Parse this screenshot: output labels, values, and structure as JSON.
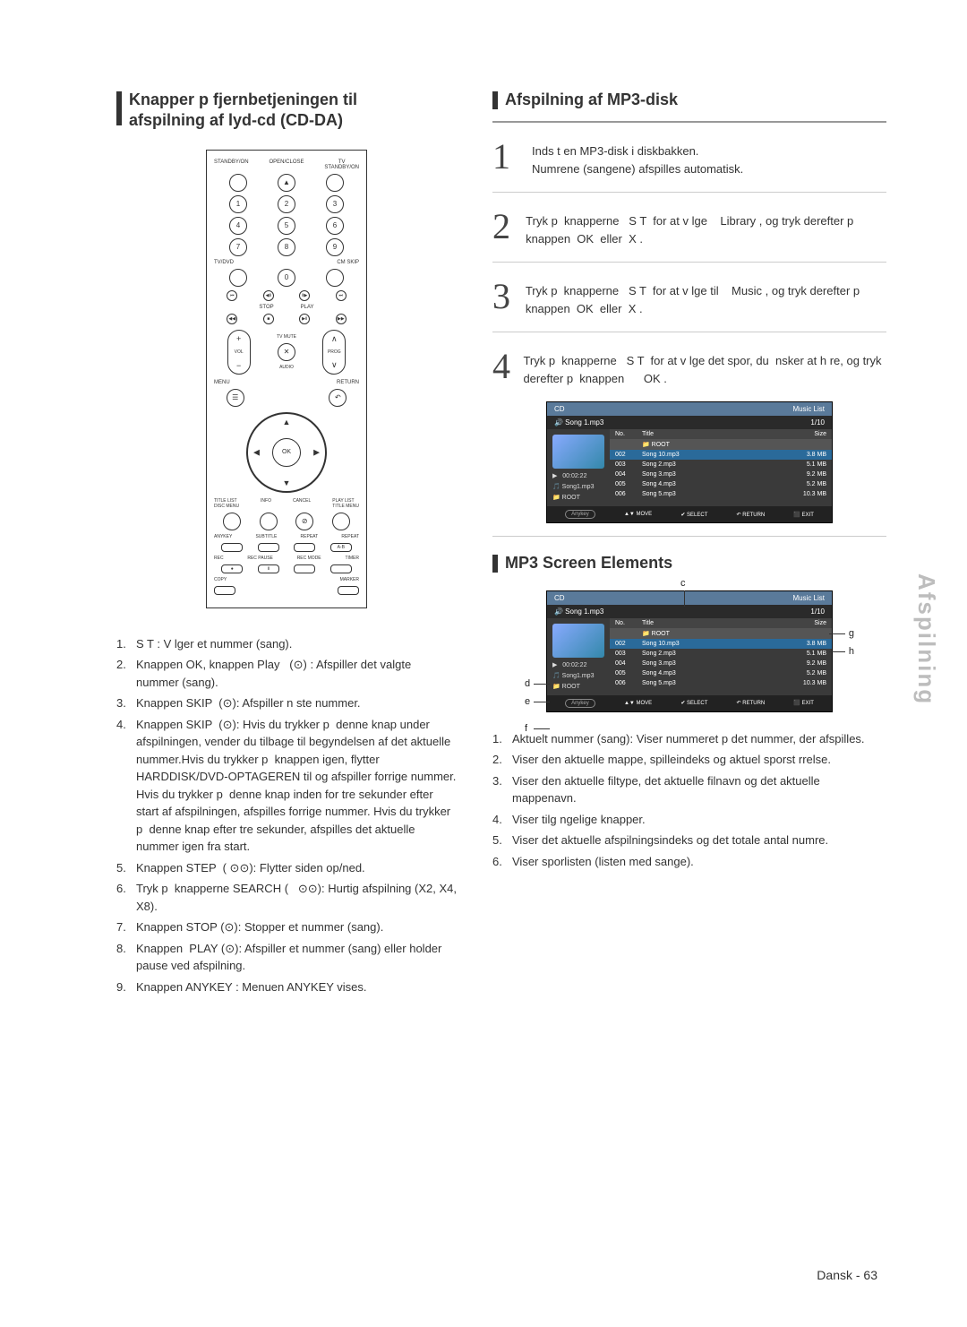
{
  "left": {
    "title_line1": "Knapper p  fjernbetjeningen til",
    "title_line2": "afspilning af lyd-cd (CD-DA)",
    "remote": {
      "labels": {
        "standby": "STANDBY/ON",
        "openclose": "OPEN/CLOSE",
        "tvstandby": "TV\nSTANDBY/ON",
        "tvdvd": "TV/DVD",
        "cmskip": "CM SKIP",
        "stop": "STOP",
        "play": "PLAY",
        "tvmute": "TV MUTE",
        "vol": "VOL",
        "prog": "PROG",
        "audio": "AUDIO",
        "menu": "MENU",
        "return": "RETURN",
        "ok": "OK",
        "titlelist": "TITLE LIST\nDISC MENU",
        "info": "INFO",
        "cancel": "CANCEL",
        "playlist": "PLAY LIST\nTITLE MENU",
        "anykey": "ANYKEY",
        "subtitle": "SUBTITLE",
        "repeat": "REPEAT",
        "repeat2": "REPEAT",
        "ab": "A-B",
        "rec": "REC",
        "recpause": "REC PAUSE",
        "recmode": "REC MODE",
        "timer": "TIMER",
        "copy": "COPY",
        "marker": "MARKER"
      }
    },
    "list": [
      {
        "n": "1.",
        "text": "S T : V lger et nummer (sang)."
      },
      {
        "n": "2.",
        "text": "Knappen OK, knappen Play   (⊙) : Afspiller det valgte nummer (sang)."
      },
      {
        "n": "3.",
        "text": "Knappen SKIP  (⊙): Afspiller n ste nummer."
      },
      {
        "n": "4.",
        "text": "Knappen SKIP  (⊙): Hvis du trykker p  denne knap under afspilningen, vender du tilbage til begyndelsen af det aktuelle nummer.Hvis du trykker p  knappen igen, flytter HARDDISK/DVD-OPTAGEREN til og afspiller forrige nummer.\nHvis du trykker p  denne knap inden for tre sekunder efter start af afspilningen, afspilles forrige nummer. Hvis du trykker p  denne knap efter tre sekunder, afspilles det aktuelle nummer igen fra start."
      },
      {
        "n": "5.",
        "text": "Knappen STEP  ( ⊙⊙): Flytter siden op/ned."
      },
      {
        "n": "6.",
        "text": "Tryk p  knapperne SEARCH (   ⊙⊙): Hurtig afspilning (X2, X4, X8)."
      },
      {
        "n": "7.",
        "text": "Knappen STOP (⊙): Stopper et nummer (sang)."
      },
      {
        "n": "8.",
        "text": "Knappen  PLAY (⊙): Afspiller et nummer (sang) eller holder pause ved afspilning."
      },
      {
        "n": "9.",
        "text": "Knappen ANYKEY : Menuen ANYKEY vises."
      }
    ]
  },
  "right": {
    "title1": "Afspilning af MP3-disk",
    "steps": [
      {
        "n": "1",
        "text": "Inds t en MP3-disk i diskbakken.\nNumrene (sangene) afspilles automatisk."
      },
      {
        "n": "2",
        "text": "Tryk p  knapperne   S T  for at v lge    Library , og tryk derefter p  knappen  OK  eller  X ."
      },
      {
        "n": "3",
        "text": "Tryk p  knapperne   S T  for at v lge til    Music , og tryk derefter p  knappen  OK  eller  X ."
      },
      {
        "n": "4",
        "text": "Tryk p  knapperne   S T  for at v lge det spor, du  nsker at h re, og tryk derefter p  knappen      OK ."
      }
    ],
    "music_list": {
      "header_left": "CD",
      "header_right": "Music List",
      "current": "Song 1.mp3",
      "page": "1/10",
      "cols": [
        "No.",
        "Title",
        "Size"
      ],
      "root": "ROOT",
      "rows": [
        {
          "no": "002",
          "title": "Song 10.mp3",
          "size": "3.8 MB"
        },
        {
          "no": "003",
          "title": "Song 2.mp3",
          "size": "5.1 MB"
        },
        {
          "no": "004",
          "title": "Song 3.mp3",
          "size": "9.2 MB"
        },
        {
          "no": "005",
          "title": "Song 4.mp3",
          "size": "5.2 MB"
        },
        {
          "no": "006",
          "title": "Song 5.mp3",
          "size": "10.3 MB"
        }
      ],
      "thumb_meta1": "00:02:22",
      "thumb_meta2": "Song1.mp3",
      "thumb_meta3": "ROOT",
      "footer": {
        "anykey": "Anykey",
        "move": "MOVE",
        "select": "SELECT",
        "return": "RETURN",
        "exit": "EXIT"
      }
    },
    "title2": "MP3 Screen Elements",
    "diagram_labels": {
      "c": "c",
      "d": "d",
      "e": "e",
      "f": "f",
      "g": "g",
      "h": "h"
    },
    "list2": [
      {
        "n": "1.",
        "text": "Aktuelt nummer (sang):    Viser nummeret p  det nummer, der afspilles."
      },
      {
        "n": "2.",
        "text": "Viser den aktuelle mappe, spilleindeks og aktuel sporst rrelse."
      },
      {
        "n": "3.",
        "text": "Viser den aktuelle filtype, det aktuelle filnavn og det aktuelle mappenavn."
      },
      {
        "n": "4.",
        "text": "Viser tilg ngelige knapper."
      },
      {
        "n": "5.",
        "text": "Viser det aktuelle afspilningsindeks og det totale antal numre."
      },
      {
        "n": "6.",
        "text": "Viser sporlisten (listen med sange)."
      }
    ]
  },
  "side_tab": "Afspilning",
  "page_number": "Dansk - 63",
  "colors": {
    "text": "#333333",
    "divider": "#999999",
    "music_header": "#5a7a9a",
    "music_bg": "#3a3a3a",
    "side_tab": "#bdbdbd"
  }
}
